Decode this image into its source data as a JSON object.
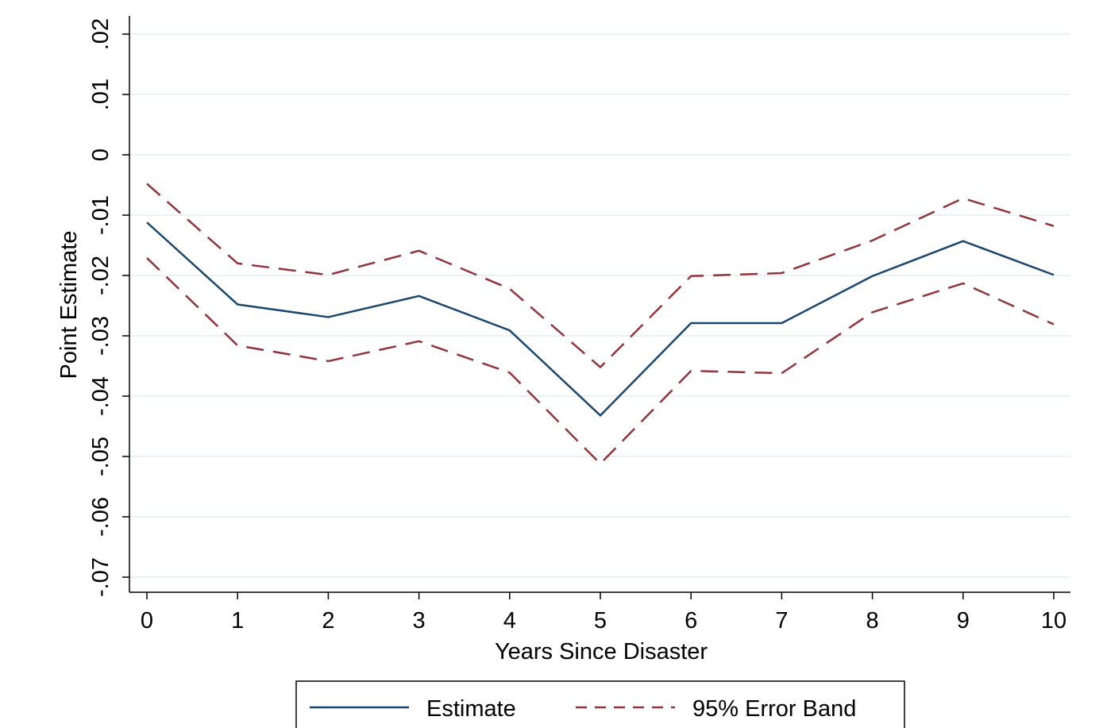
{
  "chart_data": {
    "type": "line",
    "title": "",
    "xlabel": "Years Since Disaster",
    "ylabel": "Point Estimate",
    "x": [
      0,
      1,
      2,
      3,
      4,
      5,
      6,
      7,
      8,
      9,
      10
    ],
    "x_ticks": [
      "0",
      "1",
      "2",
      "3",
      "4",
      "5",
      "6",
      "7",
      "8",
      "9",
      "10"
    ],
    "y_ticks": [
      -0.07,
      -0.06,
      -0.05,
      -0.04,
      -0.03,
      -0.02,
      -0.01,
      0,
      0.01,
      0.02
    ],
    "y_tick_labels": [
      "-.07",
      "-.06",
      "-.05",
      "-.04",
      "-.03",
      "-.02",
      "-.01",
      "0",
      ".01",
      ".02"
    ],
    "xlim": [
      0,
      10
    ],
    "ylim": [
      -0.07,
      0.02
    ],
    "grid": true,
    "legend_position": "bottom",
    "series": [
      {
        "name": "Estimate",
        "style": "solid",
        "color": "#1a476f",
        "values": [
          -0.0112,
          -0.0248,
          -0.0269,
          -0.0234,
          -0.0291,
          -0.0432,
          -0.0279,
          -0.0279,
          -0.0201,
          -0.0143,
          -0.0199
        ]
      },
      {
        "name": "95% Error Band",
        "style": "dashed",
        "color": "#90353b",
        "values": [
          -0.0048,
          -0.018,
          -0.0199,
          -0.0159,
          -0.0222,
          -0.0352,
          -0.0201,
          -0.0196,
          -0.0142,
          -0.0072,
          -0.0118
        ]
      },
      {
        "name": "",
        "style": "dashed",
        "color": "#90353b",
        "values": [
          -0.0171,
          -0.0316,
          -0.0342,
          -0.0309,
          -0.0361,
          -0.0512,
          -0.0358,
          -0.0362,
          -0.0261,
          -0.0213,
          -0.0281
        ]
      }
    ]
  }
}
